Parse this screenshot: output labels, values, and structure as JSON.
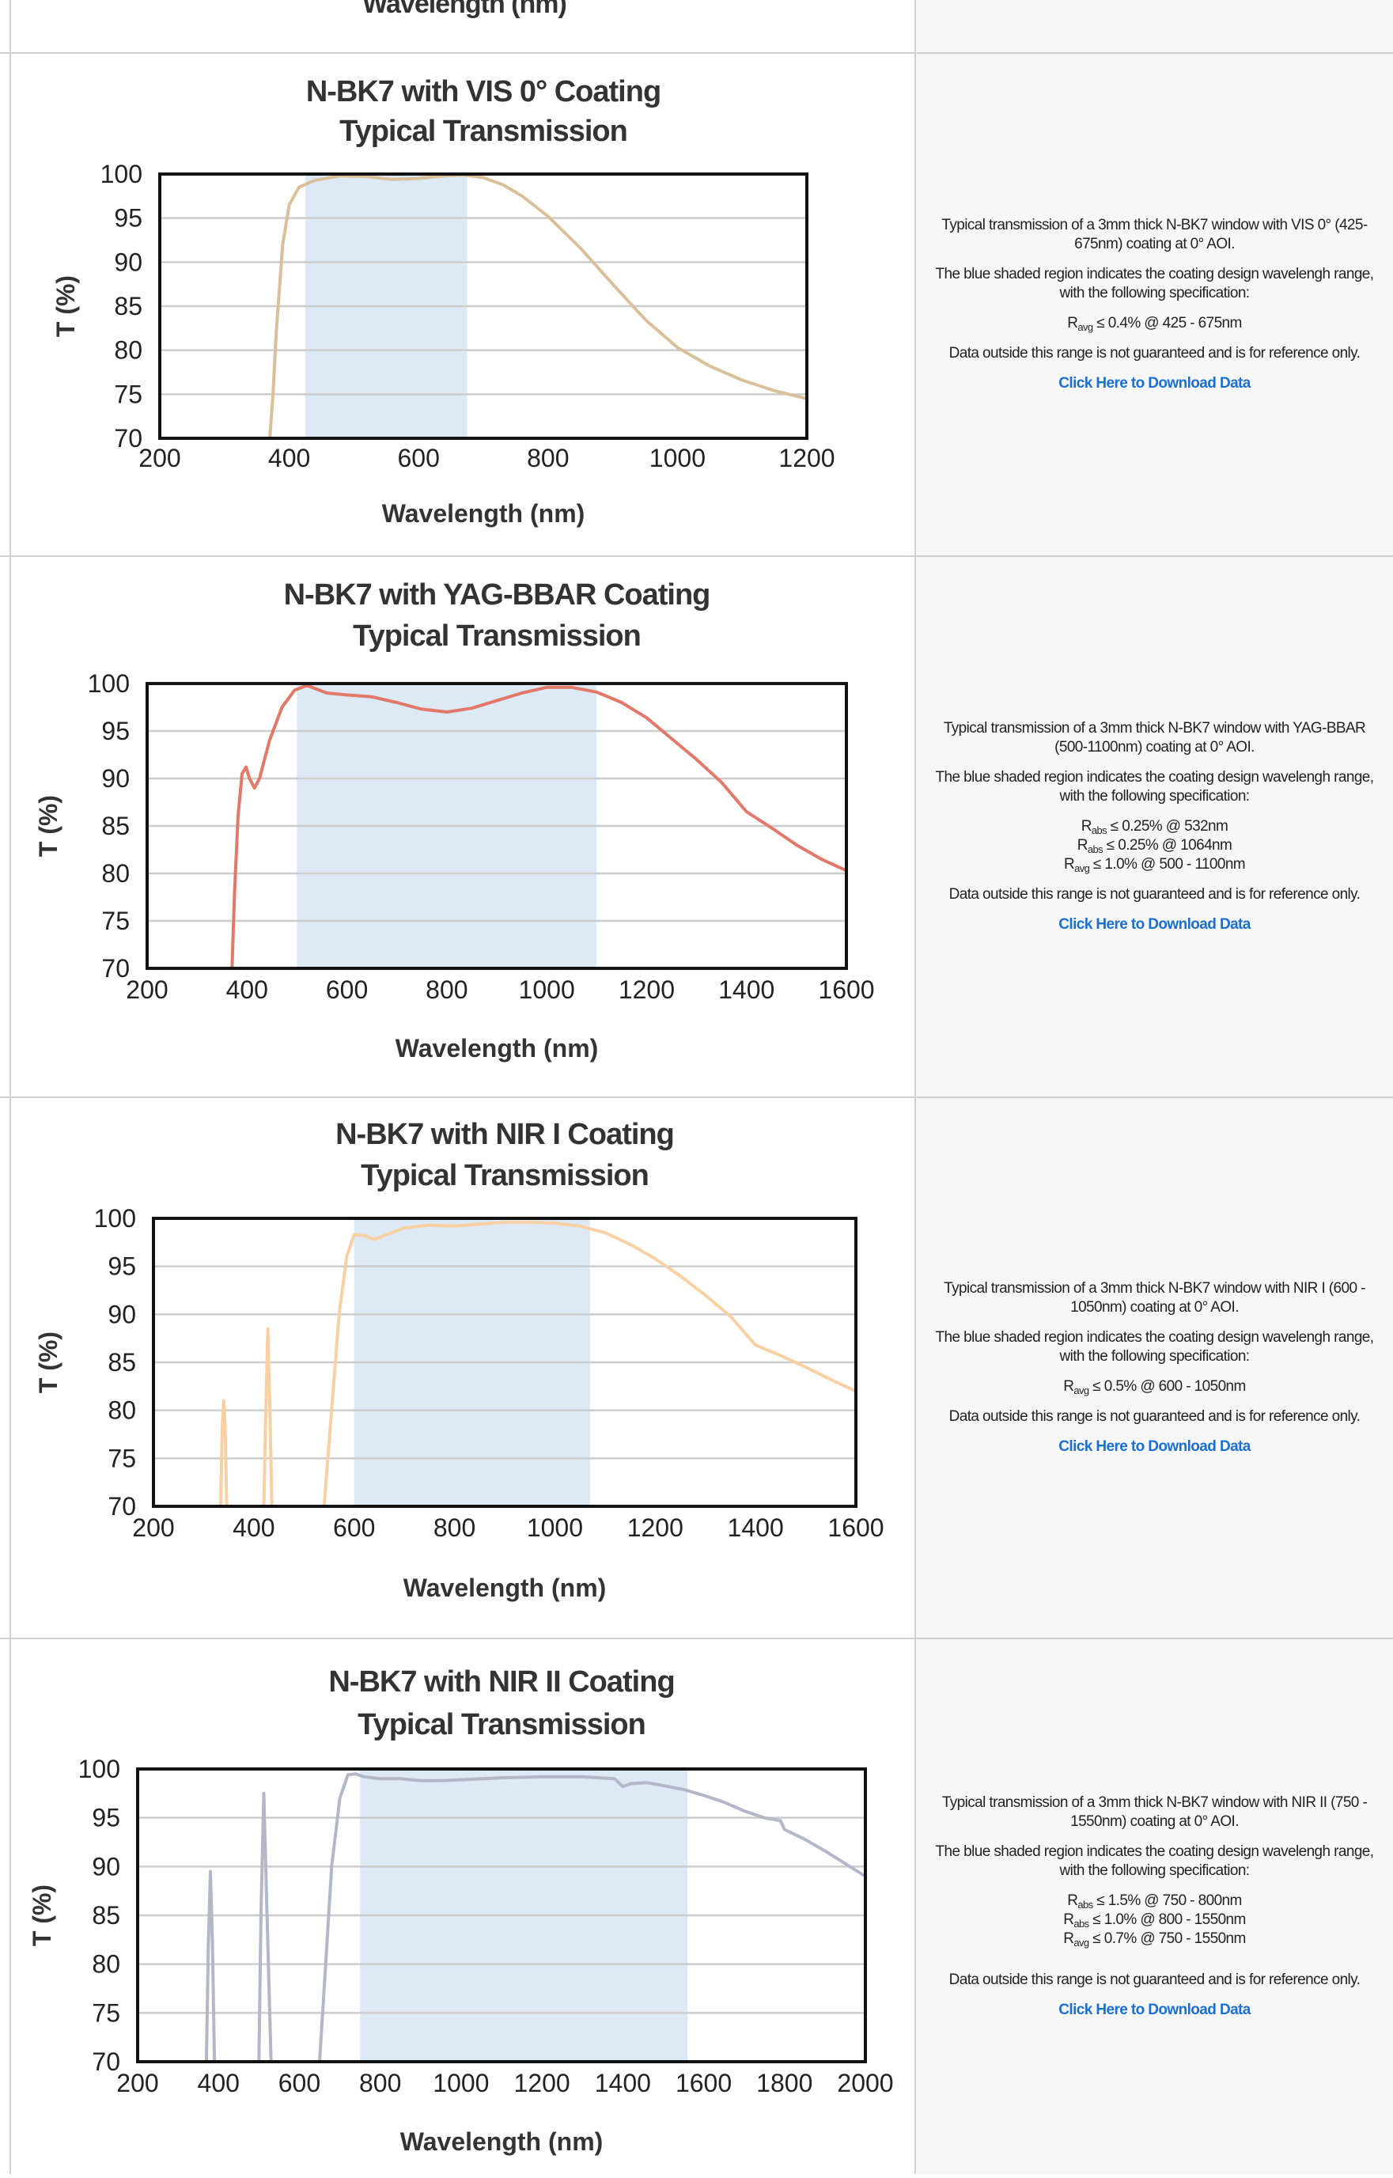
{
  "top_row": {
    "xlabel": "Wavelength (nm)"
  },
  "rows": [
    {
      "description": "Typical transmission of a 3mm thick N-BK7 window with VIS 0° (425-675nm) coating at 0° AOI.",
      "shading_note": "The blue shaded region indicates the coating design wavelengh range, with the following specification:",
      "specs": [
        {
          "sym": "R",
          "sub": "avg",
          "text": " ≤ 0.4% @ 425 - 675nm"
        }
      ],
      "disclaimer": "Data outside this range is not guaranteed and is for reference only.",
      "download_link": "Click Here to Download Data"
    },
    {
      "description": "Typical transmission of a 3mm thick N-BK7 window with YAG-BBAR (500-1100nm) coating at 0° AOI.",
      "shading_note": "The blue shaded region indicates the coating design wavelengh range, with the following specification:",
      "specs": [
        {
          "sym": "R",
          "sub": "abs",
          "text": " ≤ 0.25% @ 532nm"
        },
        {
          "sym": "R",
          "sub": "abs",
          "text": " ≤ 0.25% @ 1064nm"
        },
        {
          "sym": "R",
          "sub": "avg",
          "text": " ≤ 1.0% @ 500 - 1100nm"
        }
      ],
      "disclaimer": "Data outside this range is not guaranteed and is for reference only.",
      "download_link": "Click Here to Download Data"
    },
    {
      "description": "Typical transmission of a 3mm thick N-BK7 window with NIR I (600 - 1050nm) coating at 0° AOI.",
      "shading_note": "The blue shaded region indicates the coating design wavelengh range, with the following specification:",
      "specs": [
        {
          "sym": "R",
          "sub": "avg",
          "text": " ≤ 0.5% @ 600 - 1050nm"
        }
      ],
      "disclaimer": "Data outside this range is not guaranteed and is for reference only.",
      "download_link": "Click Here to Download Data"
    },
    {
      "description": "Typical transmission of a 3mm thick N-BK7 window with NIR II (750 - 1550nm) coating at 0° AOI.",
      "shading_note": "The blue shaded region indicates the coating design wavelengh range, with the following specification:",
      "specs": [
        {
          "sym": "R",
          "sub": "abs",
          "text": " ≤ 1.5% @ 750 - 800nm"
        },
        {
          "sym": "R",
          "sub": "abs",
          "text": " ≤ 1.0% @ 800 - 1550nm"
        },
        {
          "sym": "R",
          "sub": "avg",
          "text": " ≤ 0.7% @ 750 - 1550nm"
        }
      ],
      "disclaimer": "Data outside this range is not guaranteed and is for reference only.",
      "download_link": "Click Here to Download Data"
    }
  ],
  "chart_data": [
    {
      "type": "line",
      "title": [
        "N-BK7 with VIS 0° Coating",
        "Typical Transmission"
      ],
      "xlabel": "Wavelength (nm)",
      "ylabel": "T (%)",
      "xlim": [
        200,
        1200
      ],
      "ylim": [
        70,
        100
      ],
      "xticks": [
        200,
        400,
        600,
        800,
        1000,
        1200
      ],
      "yticks": [
        70,
        75,
        80,
        85,
        90,
        95,
        100
      ],
      "shaded_range": [
        425,
        675
      ],
      "grid": true,
      "series": [
        {
          "color": "#d9c09a",
          "segments": [
            [
              [
                370,
                70
              ],
              [
                375,
                75
              ],
              [
                380,
                82
              ],
              [
                390,
                92
              ],
              [
                400,
                96.5
              ],
              [
                415,
                98.5
              ],
              [
                440,
                99.3
              ],
              [
                480,
                99.8
              ],
              [
                520,
                99.7
              ],
              [
                560,
                99.4
              ],
              [
                600,
                99.5
              ],
              [
                640,
                99.8
              ],
              [
                670,
                99.9
              ],
              [
                700,
                99.6
              ],
              [
                730,
                98.8
              ],
              [
                760,
                97.5
              ],
              [
                800,
                95.2
              ],
              [
                850,
                91.6
              ],
              [
                900,
                87.5
              ],
              [
                950,
                83.5
              ],
              [
                1000,
                80.3
              ],
              [
                1050,
                78.2
              ],
              [
                1100,
                76.6
              ],
              [
                1150,
                75.4
              ],
              [
                1200,
                74.5
              ]
            ]
          ]
        }
      ]
    },
    {
      "type": "line",
      "title": [
        "N-BK7 with YAG-BBAR Coating",
        "Typical Transmission"
      ],
      "xlabel": "Wavelength (nm)",
      "ylabel": "T (%)",
      "xlim": [
        200,
        1600
      ],
      "ylim": [
        70,
        100
      ],
      "xticks": [
        200,
        400,
        600,
        800,
        1000,
        1200,
        1400,
        1600
      ],
      "yticks": [
        70,
        75,
        80,
        85,
        90,
        95,
        100
      ],
      "shaded_range": [
        500,
        1100
      ],
      "grid": true,
      "series": [
        {
          "color": "#e27869",
          "segments": [
            [
              [
                370,
                70
              ],
              [
                375,
                78
              ],
              [
                382,
                86
              ],
              [
                390,
                90.5
              ],
              [
                398,
                91.2
              ],
              [
                405,
                90
              ],
              [
                415,
                89
              ],
              [
                425,
                90
              ],
              [
                445,
                94
              ],
              [
                470,
                97.5
              ],
              [
                495,
                99.3
              ],
              [
                520,
                99.8
              ],
              [
                560,
                99
              ],
              [
                600,
                98.8
              ],
              [
                650,
                98.6
              ],
              [
                700,
                98
              ],
              [
                750,
                97.3
              ],
              [
                800,
                97
              ],
              [
                850,
                97.4
              ],
              [
                900,
                98.2
              ],
              [
                950,
                99
              ],
              [
                1000,
                99.6
              ],
              [
                1050,
                99.6
              ],
              [
                1100,
                99.1
              ],
              [
                1150,
                98
              ],
              [
                1200,
                96.4
              ],
              [
                1250,
                94.2
              ],
              [
                1300,
                92
              ],
              [
                1350,
                89.6
              ],
              [
                1400,
                86.5
              ],
              [
                1450,
                84.8
              ],
              [
                1500,
                83
              ],
              [
                1550,
                81.5
              ],
              [
                1600,
                80.3
              ]
            ]
          ]
        }
      ]
    },
    {
      "type": "line",
      "title": [
        "N-BK7 with NIR I Coating",
        "Typical Transmission"
      ],
      "xlabel": "Wavelength (nm)",
      "ylabel": "T (%)",
      "xlim": [
        200,
        1600
      ],
      "ylim": [
        70,
        100
      ],
      "xticks": [
        200,
        400,
        600,
        800,
        1000,
        1200,
        1400,
        1600
      ],
      "yticks": [
        70,
        75,
        80,
        85,
        90,
        95,
        100
      ],
      "shaded_range": [
        600,
        1070
      ],
      "grid": true,
      "series": [
        {
          "color": "#f9cfa4",
          "segments": [
            [
              [
                334,
                70
              ],
              [
                337,
                78
              ],
              [
                340,
                81
              ],
              [
                343,
                78
              ],
              [
                346,
                70
              ]
            ],
            [
              [
                420,
                70
              ],
              [
                424,
                80
              ],
              [
                428,
                88.5
              ],
              [
                432,
                80
              ],
              [
                436,
                70
              ]
            ],
            [
              [
                540,
                70
              ],
              [
                555,
                80
              ],
              [
                570,
                90
              ],
              [
                585,
                96
              ],
              [
                600,
                98.3
              ],
              [
                620,
                98.2
              ],
              [
                640,
                97.8
              ],
              [
                660,
                98.2
              ],
              [
                700,
                99
              ],
              [
                750,
                99.3
              ],
              [
                800,
                99.2
              ],
              [
                850,
                99.4
              ],
              [
                900,
                99.6
              ],
              [
                950,
                99.6
              ],
              [
                1000,
                99.5
              ],
              [
                1050,
                99.2
              ],
              [
                1100,
                98.5
              ],
              [
                1150,
                97.3
              ],
              [
                1200,
                95.8
              ],
              [
                1250,
                94
              ],
              [
                1300,
                92
              ],
              [
                1350,
                89.8
              ],
              [
                1400,
                86.8
              ],
              [
                1450,
                85.7
              ],
              [
                1500,
                84.5
              ],
              [
                1550,
                83.2
              ],
              [
                1600,
                82
              ]
            ]
          ]
        }
      ]
    },
    {
      "type": "line",
      "title": [
        "N-BK7 with NIR II Coating",
        "Typical Transmission"
      ],
      "xlabel": "Wavelength (nm)",
      "ylabel": "T (%)",
      "xlim": [
        200,
        2000
      ],
      "ylim": [
        70,
        100
      ],
      "xticks": [
        200,
        400,
        600,
        800,
        1000,
        1200,
        1400,
        1600,
        1800,
        2000
      ],
      "yticks": [
        70,
        75,
        80,
        85,
        90,
        95,
        100
      ],
      "shaded_range": [
        750,
        1560
      ],
      "grid": true,
      "series": [
        {
          "color": "#b3b7c8",
          "segments": [
            [
              [
                370,
                70
              ],
              [
                375,
                82
              ],
              [
                380,
                89.5
              ],
              [
                385,
                82
              ],
              [
                390,
                70
              ]
            ],
            [
              [
                500,
                70
              ],
              [
                505,
                85
              ],
              [
                512,
                97.5
              ],
              [
                520,
                85
              ],
              [
                530,
                70
              ]
            ],
            [
              [
                650,
                70
              ],
              [
                665,
                80
              ],
              [
                680,
                90
              ],
              [
                700,
                97
              ],
              [
                720,
                99.4
              ],
              [
                740,
                99.5
              ],
              [
                760,
                99.2
              ],
              [
                800,
                99
              ],
              [
                850,
                99
              ],
              [
                900,
                98.8
              ],
              [
                950,
                98.8
              ],
              [
                1000,
                98.9
              ],
              [
                1100,
                99.1
              ],
              [
                1200,
                99.2
              ],
              [
                1300,
                99.2
              ],
              [
                1380,
                99
              ],
              [
                1400,
                98.2
              ],
              [
                1420,
                98.5
              ],
              [
                1460,
                98.6
              ],
              [
                1500,
                98.3
              ],
              [
                1550,
                97.9
              ],
              [
                1600,
                97.3
              ],
              [
                1650,
                96.6
              ],
              [
                1700,
                95.7
              ],
              [
                1750,
                95
              ],
              [
                1790,
                94.7
              ],
              [
                1800,
                93.8
              ],
              [
                1850,
                92.8
              ],
              [
                1900,
                91.6
              ],
              [
                1950,
                90.3
              ],
              [
                2000,
                89
              ]
            ]
          ]
        }
      ]
    }
  ]
}
